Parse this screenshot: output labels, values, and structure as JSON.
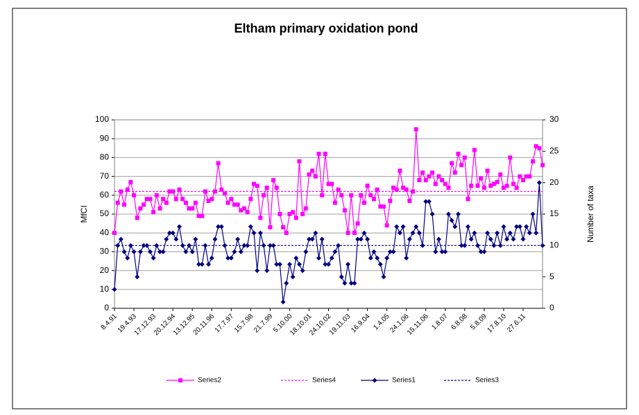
{
  "chart_data": {
    "type": "line",
    "title": "Eltham primary oxidation pond",
    "y_label": "MfCI",
    "y2_label": "Number of taxa",
    "categories": [
      "8.4.91",
      null,
      null,
      null,
      null,
      null,
      "19.4.93",
      null,
      null,
      null,
      null,
      null,
      "17.12.93",
      null,
      null,
      null,
      null,
      null,
      "20.12.94",
      null,
      null,
      null,
      null,
      null,
      "13.12.95",
      null,
      null,
      null,
      null,
      null,
      "20.11.96",
      null,
      null,
      null,
      null,
      null,
      "17.7.97",
      null,
      null,
      null,
      null,
      null,
      "15.7.98",
      null,
      null,
      null,
      null,
      null,
      "21.7.99",
      null,
      null,
      null,
      null,
      null,
      "5.10.00",
      null,
      null,
      null,
      null,
      null,
      "18.10.01",
      null,
      null,
      null,
      null,
      null,
      "24.10.02",
      null,
      null,
      null,
      null,
      null,
      "19.11.03",
      null,
      null,
      null,
      null,
      null,
      "16.9.04",
      null,
      null,
      null,
      null,
      null,
      "1.4.05",
      null,
      null,
      null,
      null,
      null,
      "24.1.06",
      null,
      null,
      null,
      null,
      null,
      "15.11.06",
      null,
      null,
      null,
      null,
      null,
      "1.8.07",
      null,
      null,
      null,
      null,
      null,
      "6.8.08",
      null,
      null,
      null,
      null,
      null,
      "5.8.09",
      null,
      null,
      null,
      null,
      null,
      "17.8.10",
      null,
      null,
      null,
      null,
      null,
      "27.6.11",
      null,
      null,
      null,
      null,
      null,
      null
    ],
    "series": [
      {
        "name": "Series2",
        "color": "#ff00ff",
        "marker": "square",
        "values": [
          40,
          56,
          62,
          55,
          63,
          67,
          60,
          48,
          53,
          55,
          58,
          58,
          51,
          60,
          53,
          58,
          56,
          62,
          62,
          58,
          63,
          58,
          56,
          53,
          53,
          56,
          49,
          49,
          62,
          57,
          58,
          62,
          77,
          63,
          61,
          56,
          58,
          55,
          55,
          52,
          53,
          51,
          58,
          66,
          65,
          48,
          60,
          64,
          43,
          68,
          64,
          50,
          43,
          40,
          50,
          51,
          48,
          78,
          50,
          53,
          71,
          73,
          70,
          82,
          60,
          82,
          66,
          66,
          56,
          63,
          60,
          52,
          40,
          60,
          40,
          45,
          60,
          56,
          65,
          60,
          58,
          63,
          54,
          54,
          44,
          57,
          64,
          63,
          73,
          64,
          63,
          57,
          62,
          95,
          68,
          72,
          68,
          70,
          72,
          66,
          70,
          68,
          66,
          64,
          77,
          72,
          82,
          76,
          80,
          58,
          65,
          84,
          65,
          69,
          64,
          73,
          65,
          66,
          67,
          71,
          64,
          65,
          80,
          66,
          64,
          70,
          68,
          70,
          70,
          78,
          86,
          85,
          76
        ]
      },
      {
        "name": "Series4",
        "color": "#ff00ff",
        "value": 62,
        "dash": true
      },
      {
        "name": "Series1",
        "color": "#000080",
        "marker": "diamond",
        "axis": "y2",
        "values": [
          3,
          10,
          11,
          9,
          8,
          10,
          9,
          5,
          9,
          10,
          10,
          9,
          8,
          10,
          9,
          9,
          11,
          12,
          12,
          11,
          13,
          10,
          9,
          10,
          9,
          11,
          7,
          7,
          10,
          7,
          8,
          11,
          13,
          13,
          10,
          8,
          8,
          9,
          11,
          9,
          10,
          10,
          13,
          12,
          6,
          12,
          10,
          6,
          10,
          10,
          7,
          7,
          1,
          4,
          7,
          5,
          8,
          7,
          6,
          9,
          11,
          11,
          12,
          8,
          11,
          7,
          7,
          8,
          9,
          10,
          5,
          4,
          7,
          4,
          4,
          11,
          11,
          12,
          11,
          8,
          9,
          8,
          7,
          5,
          8,
          9,
          9,
          13,
          12,
          13,
          8,
          11,
          12,
          13,
          12,
          10,
          17,
          17,
          15,
          9,
          11,
          9,
          9,
          15,
          14,
          13,
          15,
          10,
          10,
          13,
          11,
          12,
          10,
          9,
          9,
          12,
          11,
          10,
          12,
          10,
          13,
          11,
          12,
          11,
          13,
          13,
          11,
          13,
          12,
          15,
          12,
          20,
          10
        ]
      },
      {
        "name": "Series3",
        "color": "#000080",
        "value": 10,
        "axis": "y2",
        "dash": true
      }
    ],
    "ylim": [
      0,
      100
    ],
    "yticks": [
      0,
      10,
      20,
      30,
      40,
      50,
      60,
      70,
      80,
      90,
      100
    ],
    "y2lim": [
      0,
      30
    ],
    "y2ticks": [
      0,
      5,
      10,
      15,
      20,
      25,
      30
    ],
    "grid": true,
    "legend": "bottom"
  }
}
